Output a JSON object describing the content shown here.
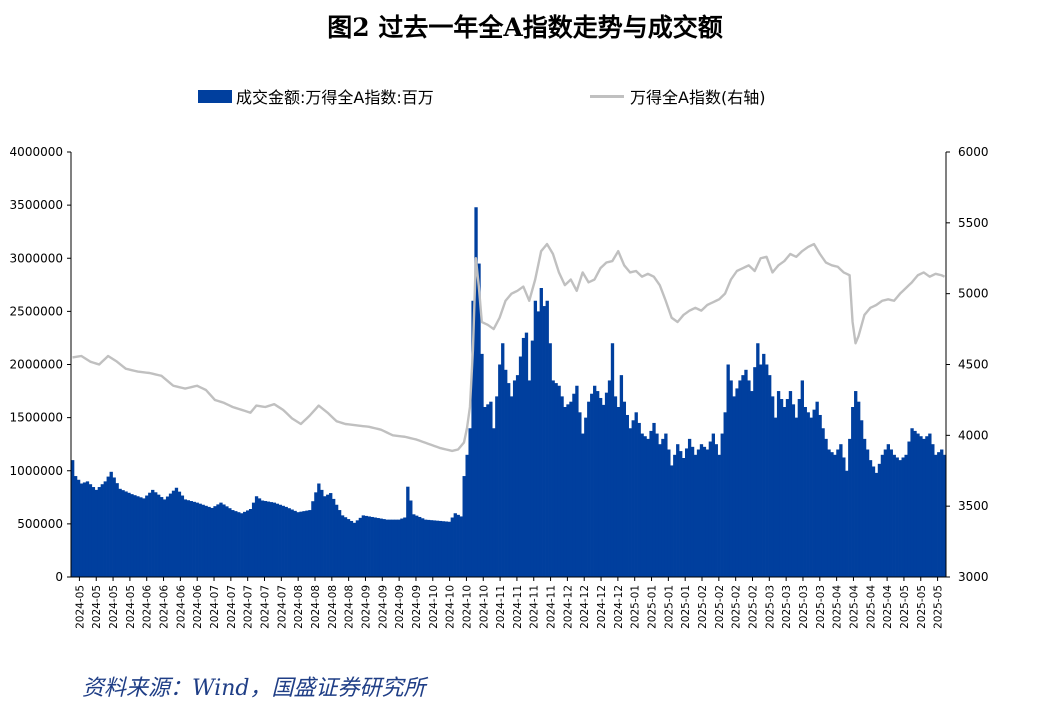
{
  "title": "图2 过去一年全A指数走势与成交额",
  "source": "资料来源：Wind，国盛证券研究所",
  "chart_data": {
    "type": "bar+line",
    "title": "图2 过去一年全A指数走势与成交额",
    "legend": [
      {
        "name": "成交金额:万得全A指数:百万",
        "kind": "bar",
        "color": "#003f9e"
      },
      {
        "name": "万得全A指数(右轴)",
        "kind": "line",
        "color": "#c0c0c0"
      }
    ],
    "legend_position": "top",
    "y_left": {
      "min": 0,
      "max": 4000000,
      "ticks": [
        0,
        500000,
        1000000,
        1500000,
        2000000,
        2500000,
        3000000,
        3500000,
        4000000
      ],
      "tick_labels": [
        "0",
        "500000",
        "1000000",
        "1500000",
        "2000000",
        "2500000",
        "3000000",
        "3500000",
        "4000000"
      ]
    },
    "y_right": {
      "min": 3000,
      "max": 6000,
      "ticks": [
        3000,
        3500,
        4000,
        4500,
        5000,
        5500,
        6000
      ],
      "tick_labels": [
        "3000",
        "3500",
        "4000",
        "4500",
        "5000",
        "5500",
        "6000"
      ]
    },
    "x_tick_labels": [
      "2024-05",
      "2024-05",
      "2024-05",
      "2024-05",
      "2024-06",
      "2024-06",
      "2024-06",
      "2024-06",
      "2024-07",
      "2024-07",
      "2024-07",
      "2024-07",
      "2024-07",
      "2024-08",
      "2024-08",
      "2024-08",
      "2024-08",
      "2024-09",
      "2024-09",
      "2024-09",
      "2024-09",
      "2024-10",
      "2024-10",
      "2024-10",
      "2024-10",
      "2024-11",
      "2024-11",
      "2024-11",
      "2024-11",
      "2024-12",
      "2024-12",
      "2024-12",
      "2024-12",
      "2025-01",
      "2025-01",
      "2025-01",
      "2025-01",
      "2025-02",
      "2025-02",
      "2025-02",
      "2025-02",
      "2025-03",
      "2025-03",
      "2025-03",
      "2025-03",
      "2025-04",
      "2025-04",
      "2025-04",
      "2025-04",
      "2025-05",
      "2025-05",
      "2025-05"
    ],
    "turnover_anchors": [
      [
        0,
        1100000
      ],
      [
        1,
        950000
      ],
      [
        3,
        880000
      ],
      [
        5,
        900000
      ],
      [
        8,
        820000
      ],
      [
        11,
        900000
      ],
      [
        13,
        990000
      ],
      [
        16,
        830000
      ],
      [
        20,
        780000
      ],
      [
        24,
        740000
      ],
      [
        27,
        820000
      ],
      [
        31,
        730000
      ],
      [
        35,
        840000
      ],
      [
        38,
        730000
      ],
      [
        42,
        700000
      ],
      [
        47,
        650000
      ],
      [
        50,
        700000
      ],
      [
        54,
        630000
      ],
      [
        57,
        600000
      ],
      [
        60,
        640000
      ],
      [
        62,
        760000
      ],
      [
        64,
        720000
      ],
      [
        68,
        700000
      ],
      [
        72,
        660000
      ],
      [
        76,
        610000
      ],
      [
        80,
        630000
      ],
      [
        83,
        880000
      ],
      [
        85,
        760000
      ],
      [
        87,
        790000
      ],
      [
        89,
        680000
      ],
      [
        91,
        580000
      ],
      [
        95,
        510000
      ],
      [
        98,
        580000
      ],
      [
        102,
        560000
      ],
      [
        106,
        540000
      ],
      [
        110,
        540000
      ],
      [
        112,
        560000
      ],
      [
        113,
        850000
      ],
      [
        115,
        590000
      ],
      [
        119,
        540000
      ],
      [
        123,
        530000
      ],
      [
        127,
        520000
      ],
      [
        129,
        600000
      ],
      [
        131,
        570000
      ],
      [
        132,
        950000
      ],
      [
        133,
        1150000
      ],
      [
        134,
        1400000
      ],
      [
        135,
        2600000
      ],
      [
        136,
        3480000
      ],
      [
        137,
        2950000
      ],
      [
        138,
        2100000
      ],
      [
        139,
        1600000
      ],
      [
        141,
        1650000
      ],
      [
        142,
        1400000
      ],
      [
        144,
        2000000
      ],
      [
        145,
        2200000
      ],
      [
        146,
        1950000
      ],
      [
        148,
        1700000
      ],
      [
        149,
        1850000
      ],
      [
        150,
        1900000
      ],
      [
        152,
        2250000
      ],
      [
        153,
        2300000
      ],
      [
        154,
        1850000
      ],
      [
        156,
        2600000
      ],
      [
        157,
        2500000
      ],
      [
        158,
        2720000
      ],
      [
        159,
        2550000
      ],
      [
        160,
        2600000
      ],
      [
        161,
        2200000
      ],
      [
        162,
        1850000
      ],
      [
        164,
        1800000
      ],
      [
        166,
        1600000
      ],
      [
        168,
        1650000
      ],
      [
        170,
        1800000
      ],
      [
        171,
        1550000
      ],
      [
        172,
        1350000
      ],
      [
        174,
        1650000
      ],
      [
        176,
        1800000
      ],
      [
        177,
        1750000
      ],
      [
        179,
        1620000
      ],
      [
        181,
        1850000
      ],
      [
        182,
        2200000
      ],
      [
        183,
        1700000
      ],
      [
        184,
        1600000
      ],
      [
        185,
        1900000
      ],
      [
        186,
        1650000
      ],
      [
        188,
        1400000
      ],
      [
        190,
        1550000
      ],
      [
        192,
        1350000
      ],
      [
        194,
        1300000
      ],
      [
        196,
        1450000
      ],
      [
        198,
        1250000
      ],
      [
        200,
        1350000
      ],
      [
        202,
        1050000
      ],
      [
        204,
        1250000
      ],
      [
        206,
        1120000
      ],
      [
        208,
        1300000
      ],
      [
        210,
        1150000
      ],
      [
        212,
        1250000
      ],
      [
        214,
        1200000
      ],
      [
        216,
        1350000
      ],
      [
        218,
        1150000
      ],
      [
        220,
        1550000
      ],
      [
        221,
        2000000
      ],
      [
        223,
        1700000
      ],
      [
        225,
        1850000
      ],
      [
        227,
        1950000
      ],
      [
        229,
        1750000
      ],
      [
        231,
        2200000
      ],
      [
        232,
        2000000
      ],
      [
        233,
        2100000
      ],
      [
        235,
        1900000
      ],
      [
        237,
        1500000
      ],
      [
        238,
        1750000
      ],
      [
        240,
        1600000
      ],
      [
        242,
        1750000
      ],
      [
        244,
        1500000
      ],
      [
        246,
        1850000
      ],
      [
        247,
        1600000
      ],
      [
        249,
        1500000
      ],
      [
        251,
        1650000
      ],
      [
        253,
        1400000
      ],
      [
        255,
        1200000
      ],
      [
        257,
        1150000
      ],
      [
        259,
        1250000
      ],
      [
        261,
        1000000
      ],
      [
        263,
        1600000
      ],
      [
        264,
        1750000
      ],
      [
        265,
        1650000
      ],
      [
        267,
        1300000
      ],
      [
        269,
        1100000
      ],
      [
        271,
        980000
      ],
      [
        273,
        1150000
      ],
      [
        275,
        1250000
      ],
      [
        277,
        1150000
      ],
      [
        279,
        1100000
      ],
      [
        281,
        1150000
      ],
      [
        283,
        1400000
      ],
      [
        285,
        1350000
      ],
      [
        287,
        1300000
      ],
      [
        289,
        1350000
      ],
      [
        291,
        1150000
      ],
      [
        293,
        1200000
      ],
      [
        294,
        1150000
      ]
    ],
    "index_anchors": [
      [
        0,
        4550
      ],
      [
        3,
        4560
      ],
      [
        6,
        4520
      ],
      [
        9,
        4500
      ],
      [
        12,
        4560
      ],
      [
        15,
        4520
      ],
      [
        18,
        4470
      ],
      [
        22,
        4450
      ],
      [
        26,
        4440
      ],
      [
        30,
        4420
      ],
      [
        34,
        4350
      ],
      [
        38,
        4330
      ],
      [
        42,
        4350
      ],
      [
        45,
        4320
      ],
      [
        48,
        4250
      ],
      [
        51,
        4230
      ],
      [
        54,
        4200
      ],
      [
        57,
        4180
      ],
      [
        60,
        4160
      ],
      [
        62,
        4210
      ],
      [
        65,
        4200
      ],
      [
        68,
        4220
      ],
      [
        71,
        4180
      ],
      [
        74,
        4120
      ],
      [
        77,
        4080
      ],
      [
        80,
        4140
      ],
      [
        83,
        4210
      ],
      [
        86,
        4160
      ],
      [
        89,
        4100
      ],
      [
        92,
        4080
      ],
      [
        96,
        4070
      ],
      [
        100,
        4060
      ],
      [
        104,
        4040
      ],
      [
        108,
        4000
      ],
      [
        112,
        3990
      ],
      [
        116,
        3970
      ],
      [
        120,
        3940
      ],
      [
        124,
        3910
      ],
      [
        128,
        3890
      ],
      [
        130,
        3900
      ],
      [
        132,
        3950
      ],
      [
        133,
        4050
      ],
      [
        134,
        4200
      ],
      [
        135,
        4600
      ],
      [
        136,
        5250
      ],
      [
        137,
        5050
      ],
      [
        138,
        4800
      ],
      [
        140,
        4780
      ],
      [
        142,
        4750
      ],
      [
        144,
        4830
      ],
      [
        146,
        4950
      ],
      [
        148,
        5000
      ],
      [
        150,
        5020
      ],
      [
        152,
        5050
      ],
      [
        154,
        4950
      ],
      [
        156,
        5100
      ],
      [
        158,
        5300
      ],
      [
        160,
        5350
      ],
      [
        162,
        5280
      ],
      [
        164,
        5150
      ],
      [
        166,
        5060
      ],
      [
        168,
        5100
      ],
      [
        170,
        5020
      ],
      [
        172,
        5150
      ],
      [
        174,
        5080
      ],
      [
        176,
        5100
      ],
      [
        178,
        5180
      ],
      [
        180,
        5220
      ],
      [
        182,
        5230
      ],
      [
        184,
        5300
      ],
      [
        186,
        5200
      ],
      [
        188,
        5150
      ],
      [
        190,
        5160
      ],
      [
        192,
        5120
      ],
      [
        194,
        5140
      ],
      [
        196,
        5120
      ],
      [
        198,
        5060
      ],
      [
        200,
        4950
      ],
      [
        202,
        4830
      ],
      [
        204,
        4800
      ],
      [
        206,
        4850
      ],
      [
        208,
        4880
      ],
      [
        210,
        4900
      ],
      [
        212,
        4880
      ],
      [
        214,
        4920
      ],
      [
        216,
        4940
      ],
      [
        218,
        4960
      ],
      [
        220,
        5000
      ],
      [
        222,
        5100
      ],
      [
        224,
        5160
      ],
      [
        226,
        5180
      ],
      [
        228,
        5200
      ],
      [
        230,
        5160
      ],
      [
        232,
        5250
      ],
      [
        234,
        5260
      ],
      [
        236,
        5150
      ],
      [
        238,
        5200
      ],
      [
        240,
        5230
      ],
      [
        242,
        5280
      ],
      [
        244,
        5260
      ],
      [
        246,
        5300
      ],
      [
        248,
        5330
      ],
      [
        250,
        5350
      ],
      [
        252,
        5280
      ],
      [
        254,
        5220
      ],
      [
        256,
        5200
      ],
      [
        258,
        5190
      ],
      [
        260,
        5150
      ],
      [
        262,
        5130
      ],
      [
        263,
        4800
      ],
      [
        264,
        4650
      ],
      [
        265,
        4700
      ],
      [
        267,
        4850
      ],
      [
        269,
        4900
      ],
      [
        271,
        4920
      ],
      [
        273,
        4950
      ],
      [
        275,
        4960
      ],
      [
        277,
        4950
      ],
      [
        279,
        5000
      ],
      [
        281,
        5040
      ],
      [
        283,
        5080
      ],
      [
        285,
        5130
      ],
      [
        287,
        5150
      ],
      [
        289,
        5120
      ],
      [
        291,
        5140
      ],
      [
        293,
        5130
      ],
      [
        294,
        5120
      ]
    ],
    "n_days": 295
  }
}
